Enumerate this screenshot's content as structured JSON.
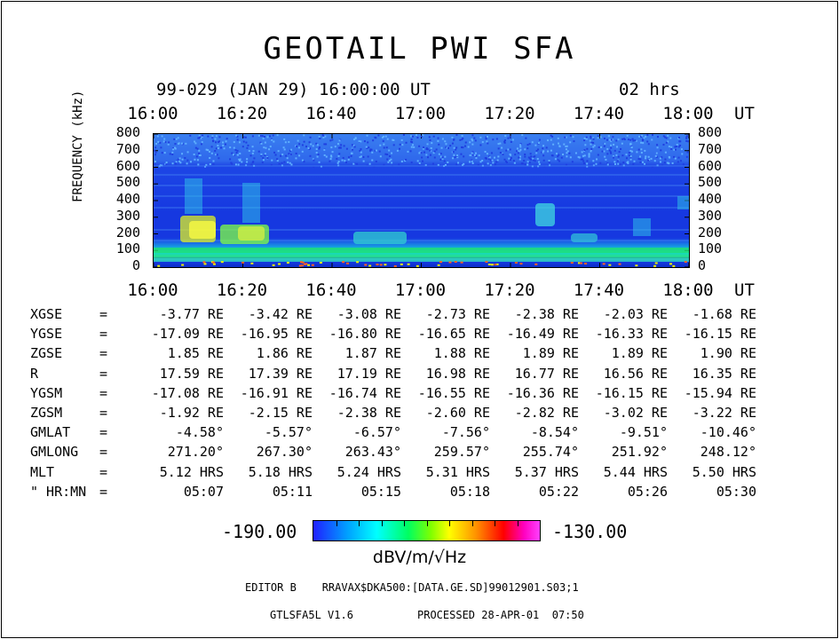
{
  "chart_data": {
    "type": "heatmap",
    "title": "GEOTAIL PWI SFA",
    "header": {
      "date_time": "99-029 (JAN 29) 16:00:00 UT",
      "duration": "02 hrs"
    },
    "xlabel": "UT",
    "ylabel": "FREQUENCY (kHz)",
    "x_ticks": [
      "16:00",
      "16:20",
      "16:40",
      "17:00",
      "17:20",
      "17:40",
      "18:00"
    ],
    "y_ticks": [
      "800",
      "700",
      "600",
      "500",
      "400",
      "300",
      "200",
      "100",
      "0"
    ],
    "ylim": [
      0,
      800
    ],
    "colorbar": {
      "min": "-190.00",
      "max": "-130.00",
      "unit": "dBV/m/√Hz"
    }
  },
  "ephemeris": {
    "rows": [
      {
        "label": "XGSE",
        "eq": "=",
        "values": [
          "-3.77 RE",
          "-3.42 RE",
          "-3.08 RE",
          "-2.73 RE",
          "-2.38 RE",
          "-2.03 RE",
          "-1.68 RE"
        ]
      },
      {
        "label": "YGSE",
        "eq": "=",
        "values": [
          "-17.09 RE",
          "-16.95 RE",
          "-16.80 RE",
          "-16.65 RE",
          "-16.49 RE",
          "-16.33 RE",
          "-16.15 RE"
        ]
      },
      {
        "label": "ZGSE",
        "eq": "=",
        "values": [
          "1.85 RE",
          "1.86 RE",
          "1.87 RE",
          "1.88 RE",
          "1.89 RE",
          "1.89 RE",
          "1.90 RE"
        ]
      },
      {
        "label": "R",
        "eq": "=",
        "values": [
          "17.59 RE",
          "17.39 RE",
          "17.19 RE",
          "16.98 RE",
          "16.77 RE",
          "16.56 RE",
          "16.35 RE"
        ]
      },
      {
        "label": "YGSM",
        "eq": "=",
        "values": [
          "-17.08 RE",
          "-16.91 RE",
          "-16.74 RE",
          "-16.55 RE",
          "-16.36 RE",
          "-16.15 RE",
          "-15.94 RE"
        ]
      },
      {
        "label": "ZGSM",
        "eq": "=",
        "values": [
          "-1.92 RE",
          "-2.15 RE",
          "-2.38 RE",
          "-2.60 RE",
          "-2.82 RE",
          "-3.02 RE",
          "-3.22 RE"
        ]
      },
      {
        "label": "GMLAT",
        "eq": "=",
        "values": [
          "-4.58°",
          "-5.57°",
          "-6.57°",
          "-7.56°",
          "-8.54°",
          "-9.51°",
          "-10.46°"
        ]
      },
      {
        "label": "GMLONG",
        "eq": "=",
        "values": [
          "271.20°",
          "267.30°",
          "263.43°",
          "259.57°",
          "255.74°",
          "251.92°",
          "248.12°"
        ]
      },
      {
        "label": "MLT",
        "eq": "=",
        "values": [
          "5.12 HRS",
          "5.18 HRS",
          "5.24 HRS",
          "5.31 HRS",
          "5.37 HRS",
          "5.44 HRS",
          "5.50 HRS"
        ]
      },
      {
        "label": "\" HR:MN",
        "eq": "=",
        "values": [
          "05:07",
          "05:11",
          "05:15",
          "05:18",
          "05:22",
          "05:26",
          "05:30"
        ]
      }
    ]
  },
  "footer": {
    "editor": "EDITOR B    RRAVAX$DKA500:[DATA.GE.SD]99012901.S03;1",
    "version": "GTLSFA5L V1.6",
    "processed": "PROCESSED 28-APR-01  07:50"
  }
}
